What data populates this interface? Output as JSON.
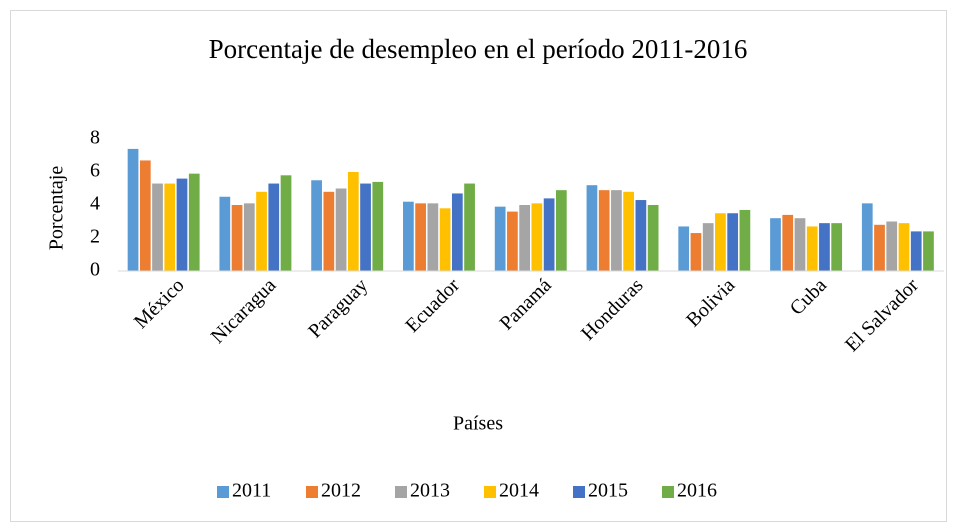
{
  "chart_data": {
    "type": "bar",
    "title": "Porcentaje de desempleo en el período 2011-2016",
    "x_label": "Países",
    "y_label": "Porcentaje",
    "categories": [
      "México",
      "Nicaragua",
      "Paraguay",
      "Ecuador",
      "Panamá",
      "Honduras",
      "Bolivia",
      "Cuba",
      "El Salvador"
    ],
    "series": [
      {
        "name": "2011",
        "color": "#5b9bd5",
        "values": [
          7.4,
          4.5,
          5.5,
          4.2,
          3.9,
          5.2,
          2.7,
          3.2,
          4.1
        ]
      },
      {
        "name": "2012",
        "color": "#ed7d31",
        "values": [
          6.7,
          4.0,
          4.8,
          4.1,
          3.6,
          4.9,
          2.3,
          3.4,
          2.8
        ]
      },
      {
        "name": "2013",
        "color": "#a5a5a5",
        "values": [
          5.3,
          4.1,
          5.0,
          4.1,
          4.0,
          4.9,
          2.9,
          3.2,
          3.0
        ]
      },
      {
        "name": "2014",
        "color": "#ffc000",
        "values": [
          5.3,
          4.8,
          6.0,
          3.8,
          4.1,
          4.8,
          3.5,
          2.7,
          2.9
        ]
      },
      {
        "name": "2015",
        "color": "#4472c4",
        "values": [
          5.6,
          5.3,
          5.3,
          4.7,
          4.4,
          4.3,
          3.5,
          2.9,
          2.4
        ]
      },
      {
        "name": "2016",
        "color": "#70ad47",
        "values": [
          5.9,
          5.8,
          5.4,
          5.3,
          4.9,
          4.0,
          3.7,
          2.9,
          2.4
        ]
      }
    ],
    "ylim": [
      0,
      8
    ],
    "yticks": [
      0,
      2,
      4,
      6,
      8
    ],
    "grid": false,
    "legend": "bottom"
  }
}
